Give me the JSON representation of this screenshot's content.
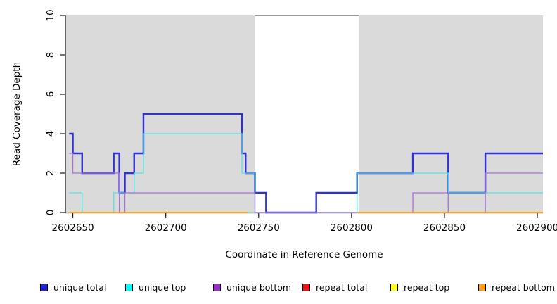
{
  "chart_data": {
    "type": "line",
    "subtype": "step-after",
    "title": "",
    "xlabel": "Coordinate in Reference Genome",
    "ylabel": "Read Coverage Depth",
    "xlim": [
      2602646,
      2602903
    ],
    "ylim": [
      0,
      10
    ],
    "grid": false,
    "x_ticks": [
      2602650,
      2602700,
      2602750,
      2602800,
      2602850,
      2602900
    ],
    "x_tick_labels": [
      "2602650",
      "2602700",
      "2602750",
      "2602800",
      "2602850",
      "2602900"
    ],
    "y_ticks": [
      0,
      2,
      4,
      6,
      8,
      10
    ],
    "y_tick_labels": [
      "0",
      "2",
      "4",
      "6",
      "8",
      "10"
    ],
    "axis_color": "#1a1a1a",
    "shaded_regions": [
      {
        "name": "repeat-region-left",
        "x0": 2602646,
        "x1": 2602748,
        "color": "#dadada"
      },
      {
        "name": "repeat-region-right",
        "x0": 2602804,
        "x1": 2602903,
        "color": "#dadada"
      }
    ],
    "gap_markers": [
      {
        "name": "gap-top-bar",
        "y": 10,
        "x0": 2602748,
        "x1": 2602804,
        "color": "#999999",
        "width": 2
      },
      {
        "name": "gap-bottom-bar",
        "y": 0,
        "x0": 2602744,
        "x1": 2602803,
        "color": "#97ce9e",
        "width": 1.4
      }
    ],
    "series": [
      {
        "name": "repeat total",
        "color": "#e02020",
        "width": 1.2,
        "order": 1,
        "steps": [
          [
            2602648,
            0
          ],
          [
            2602744,
            null
          ],
          [
            2602803,
            0
          ],
          [
            2602903,
            0
          ]
        ]
      },
      {
        "name": "repeat top",
        "color": "#ffff2a",
        "width": 1.2,
        "order": 2,
        "steps": [
          [
            2602648,
            0
          ],
          [
            2602744,
            null
          ],
          [
            2602803,
            0
          ],
          [
            2602903,
            0
          ]
        ]
      },
      {
        "name": "unique total",
        "color": "#3232d2",
        "width": 2.4,
        "order": 3,
        "steps": [
          [
            2602648,
            4
          ],
          [
            2602650,
            3
          ],
          [
            2602655,
            2
          ],
          [
            2602672,
            3
          ],
          [
            2602675,
            1
          ],
          [
            2602678,
            2
          ],
          [
            2602683,
            3
          ],
          [
            2602688,
            5
          ],
          [
            2602741,
            3
          ],
          [
            2602743,
            2
          ],
          [
            2602748,
            1
          ],
          [
            2602754,
            0
          ],
          [
            2602781,
            1
          ],
          [
            2602803,
            2
          ],
          [
            2602833,
            3
          ],
          [
            2602852,
            1
          ],
          [
            2602872,
            3
          ],
          [
            2602903,
            3
          ]
        ]
      },
      {
        "name": "unique top",
        "color": "#52e5e7",
        "width": 1.3,
        "order": 4,
        "steps": [
          [
            2602648,
            1
          ],
          [
            2602655,
            0
          ],
          [
            2602672,
            1
          ],
          [
            2602683,
            2
          ],
          [
            2602688,
            4
          ],
          [
            2602741,
            2
          ],
          [
            2602748,
            0
          ],
          [
            2602803,
            2
          ],
          [
            2602852,
            1
          ],
          [
            2602903,
            1
          ]
        ]
      },
      {
        "name": "unique bottom",
        "color": "#aa70d8",
        "width": 1.3,
        "order": 5,
        "steps": [
          [
            2602648,
            3
          ],
          [
            2602650,
            2
          ],
          [
            2602675,
            0
          ],
          [
            2602678,
            1
          ],
          [
            2602748,
            0
          ],
          [
            2602833,
            1
          ],
          [
            2602852,
            0
          ],
          [
            2602872,
            2
          ],
          [
            2602903,
            2
          ]
        ]
      },
      {
        "name": "repeat bottom",
        "color": "#ffa018",
        "width": 1.7,
        "order": 6,
        "steps": [
          [
            2602648,
            0
          ],
          [
            2602744,
            null
          ],
          [
            2602803,
            0
          ],
          [
            2602903,
            0
          ]
        ]
      }
    ],
    "legend_position": "bottom"
  },
  "legend": {
    "items": [
      {
        "label": "unique total",
        "color": "#2222cc"
      },
      {
        "label": "unique top",
        "color": "#00ffff"
      },
      {
        "label": "unique bottom",
        "color": "#9a30cc"
      },
      {
        "label": "repeat total",
        "color": "#ee1111"
      },
      {
        "label": "repeat top",
        "color": "#ffff22"
      },
      {
        "label": "repeat bottom",
        "color": "#ffa018"
      }
    ]
  }
}
